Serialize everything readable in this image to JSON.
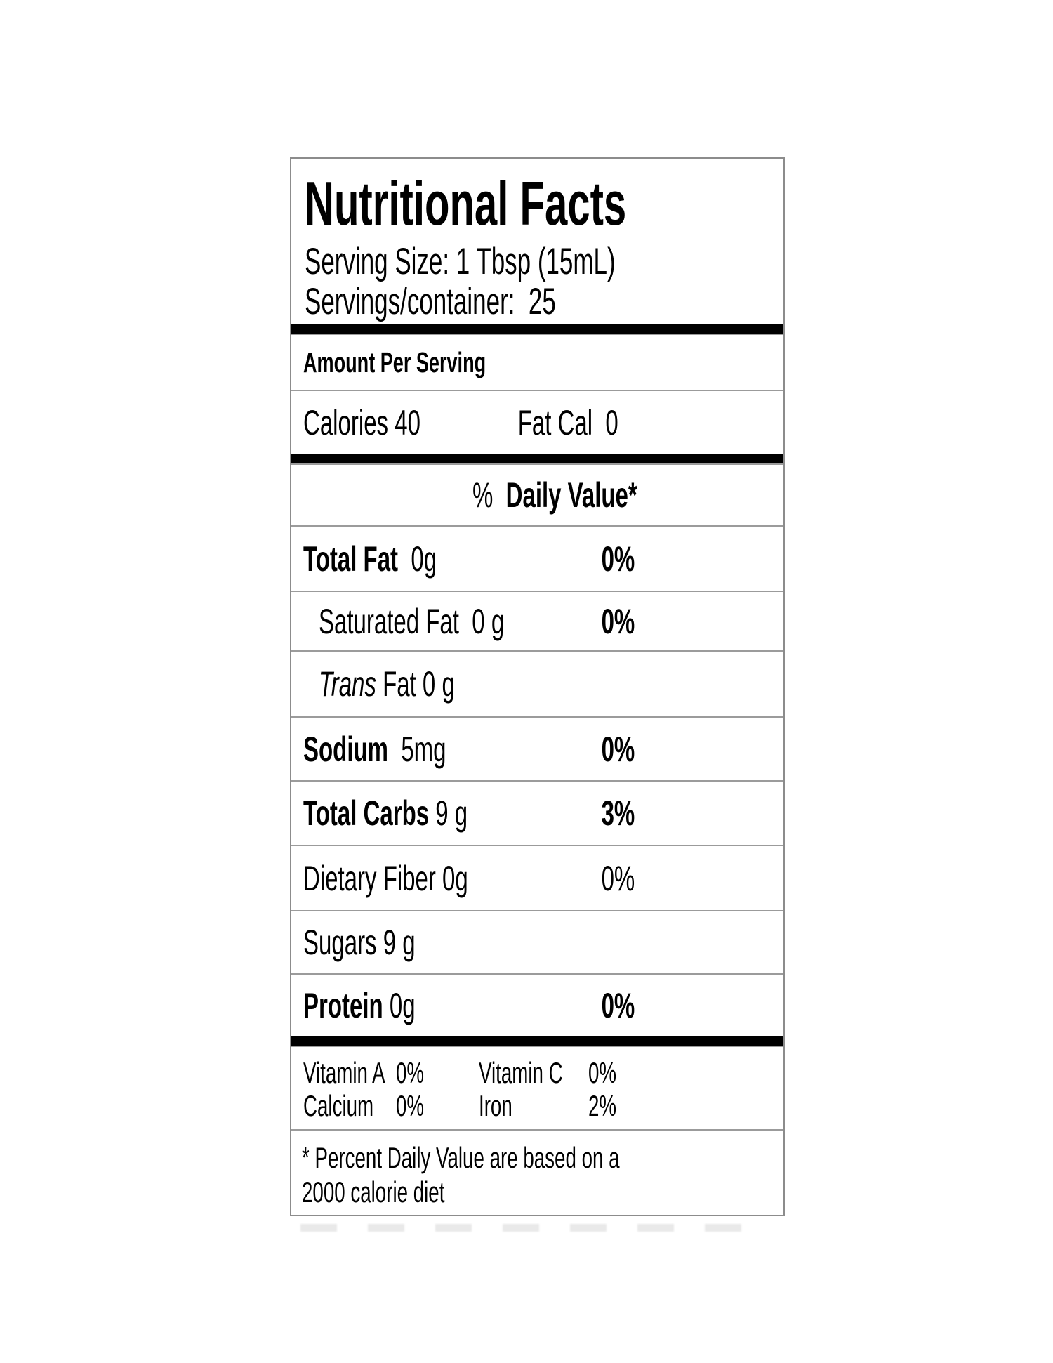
{
  "label": {
    "title": "Nutritional Facts",
    "serving_size": "Serving Size: 1 Tbsp (15mL)",
    "servings_per_container": "Servings/container:  25",
    "amount_per_serving": "Amount Per Serving",
    "calories": {
      "label": "Calories",
      "value": " 40"
    },
    "fat_cal": {
      "label": "Fat Cal",
      "value": "  0"
    },
    "daily_value_header": {
      "percent": "%  ",
      "label": "Daily Value*"
    },
    "nutrients": [
      {
        "name": "Total Fat",
        "amount": "  0g",
        "dv": "0%"
      },
      {
        "name": "Saturated Fat",
        "amount": "  0 g",
        "dv": "0%"
      },
      {
        "name": "Trans",
        "amount": " Fat 0 g"
      },
      {
        "name": "Sodium",
        "amount": "  5mg",
        "dv": "0%"
      },
      {
        "name": "Total Carbs",
        "amount": " 9 g",
        "dv": "3%"
      },
      {
        "name": "Dietary Fiber",
        "amount": " 0g",
        "dv": "0%"
      },
      {
        "name": "Sugars",
        "amount": " 9 g"
      },
      {
        "name": "Protein",
        "amount": " 0g",
        "dv": "0%"
      }
    ],
    "micronutrients": {
      "vitamin_a": {
        "name": "Vitamin A",
        "value": "0%"
      },
      "vitamin_c": {
        "name": "Vitamin C",
        "value": "0%"
      },
      "calcium": {
        "name": "Calcium",
        "value": "0%"
      },
      "iron": {
        "name": "Iron",
        "value": "2%"
      }
    },
    "footnote": "* Percent Daily Value are based on a\n2000 calorie diet"
  }
}
